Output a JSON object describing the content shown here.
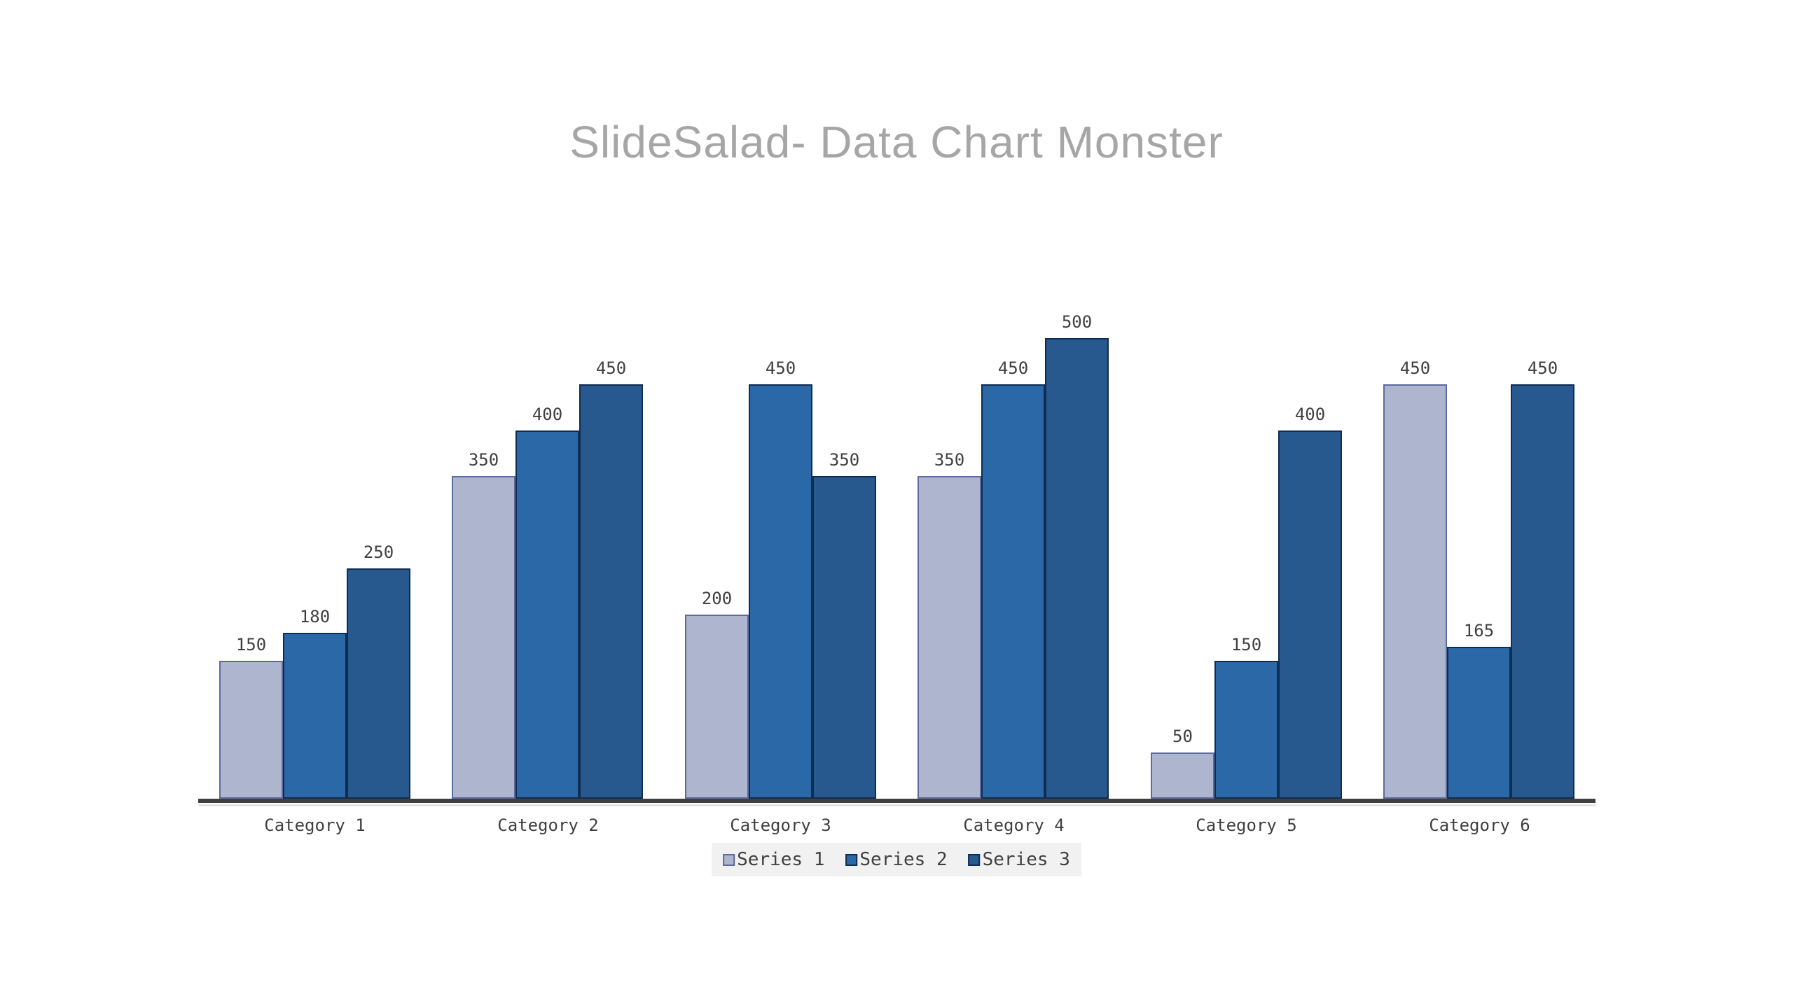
{
  "title": "SlideSalad- Data Chart Monster",
  "colors": {
    "background": "#ffffff",
    "title_text": "#a6a6a6",
    "axis_line": "#3f3f3f",
    "label_text": "#3f3f3f",
    "legend_background": "#f1f1f1"
  },
  "chart_data": {
    "type": "bar",
    "title": "SlideSalad- Data Chart Monster",
    "categories": [
      "Category 1",
      "Category 2",
      "Category 3",
      "Category 4",
      "Category 5",
      "Category 6"
    ],
    "series": [
      {
        "name": "Series 1",
        "values": [
          150,
          350,
          200,
          350,
          50,
          450
        ],
        "fill": "#aeb6cf",
        "border": "#5c6b9c"
      },
      {
        "name": "Series 2",
        "values": [
          180,
          400,
          450,
          450,
          150,
          165
        ],
        "fill": "#2a68a7",
        "border": "#0f2d53"
      },
      {
        "name": "Series 3",
        "values": [
          250,
          450,
          350,
          500,
          400,
          450
        ],
        "fill": "#27598f",
        "border": "#0f2d53"
      }
    ],
    "xlabel": "",
    "ylabel": "",
    "ylim": [
      0,
      500
    ],
    "grid": false,
    "legend_position": "bottom",
    "value_labels": true
  }
}
